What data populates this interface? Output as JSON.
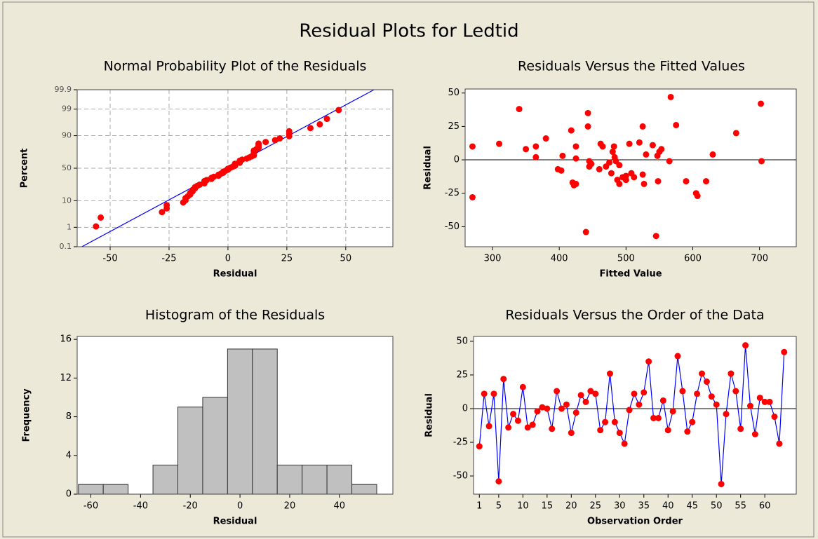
{
  "title": "Residual Plots for Ledtid",
  "chart_data": [
    {
      "type": "probability",
      "title": "Normal Probability Plot of the Residuals",
      "x_label": "Residual",
      "y_label": "Percent",
      "yscale": "probability",
      "grid": true,
      "color": "#FF0000",
      "xlim": [
        -64,
        70
      ],
      "xticks": [
        -50,
        -25,
        0,
        25,
        50
      ],
      "ylim": [
        0.1,
        99.9
      ],
      "yticks": [
        0.1,
        1,
        10,
        50,
        90,
        99,
        99.9
      ],
      "x": [
        -56,
        -54,
        -28,
        -26,
        -26,
        -19,
        -18,
        -18,
        -17,
        -16,
        -16,
        -15,
        -15,
        -14,
        -14,
        -13,
        -12,
        -10,
        -10,
        -10,
        -9,
        -7,
        -7,
        -6,
        -4,
        -4,
        -3,
        -2,
        -2,
        -1,
        0,
        0,
        1,
        2,
        3,
        3,
        3,
        5,
        5,
        5,
        6,
        8,
        9,
        10,
        11,
        11,
        11,
        11,
        11,
        12,
        13,
        13,
        13,
        13,
        16,
        20,
        22,
        26,
        26,
        26,
        35,
        39,
        42,
        47
      ],
      "y": [
        1.1,
        2.6,
        4.2,
        5.7,
        7.3,
        8.9,
        10.4,
        12.0,
        13.5,
        15.1,
        16.6,
        18.2,
        19.7,
        21.3,
        22.8,
        24.4,
        25.9,
        27.5,
        29.0,
        30.6,
        32.1,
        33.7,
        35.2,
        36.8,
        38.4,
        39.9,
        41.5,
        43.0,
        44.6,
        46.1,
        47.7,
        49.2,
        50.8,
        52.3,
        53.9,
        55.4,
        57.0,
        58.5,
        60.1,
        61.6,
        63.2,
        64.8,
        66.3,
        67.9,
        69.4,
        71.0,
        72.5,
        74.1,
        75.6,
        77.2,
        78.7,
        80.3,
        81.8,
        83.4,
        84.9,
        86.5,
        88.0,
        89.6,
        91.1,
        92.7,
        94.3,
        95.8,
        97.4,
        98.9
      ],
      "fit_line": {
        "x": [
          -62,
          62
        ],
        "y": [
          0.1,
          99.9
        ],
        "color": "#0000FF"
      }
    },
    {
      "type": "scatter",
      "title": "Residuals Versus the Fitted Values",
      "x_label": "Fitted Value",
      "y_label": "Residual",
      "color": "#FF0000",
      "reference_line": 0,
      "xlim": [
        259,
        755
      ],
      "xticks": [
        300,
        400,
        500,
        600,
        700
      ],
      "ylim": [
        -65,
        53
      ],
      "yticks": [
        -50,
        -25,
        0,
        25,
        50
      ],
      "x": [
        270,
        270,
        310,
        340,
        350,
        365,
        365,
        380,
        398,
        403,
        405,
        418,
        420,
        422,
        425,
        425,
        425,
        440,
        443,
        443,
        445,
        445,
        448,
        460,
        462,
        465,
        470,
        475,
        478,
        480,
        482,
        483,
        485,
        487,
        490,
        490,
        495,
        500,
        500,
        505,
        508,
        520,
        525,
        525,
        527,
        530,
        540,
        545,
        547,
        548,
        550,
        553,
        565,
        567,
        575,
        590,
        605,
        607,
        620,
        630,
        665,
        702,
        703,
        512
      ],
      "y": [
        10,
        -28,
        12,
        38,
        8,
        10,
        2,
        16,
        -7,
        -8,
        3,
        22,
        -17,
        -19,
        -18,
        10,
        1,
        -54,
        35,
        25,
        -5,
        -1,
        -3,
        -7,
        12,
        10,
        -5,
        -2,
        -10,
        6,
        10,
        2,
        -1,
        -15,
        -18,
        -4,
        -13,
        -12,
        -15,
        12,
        -10,
        13,
        25,
        -11,
        -18,
        4,
        11,
        -57,
        3,
        -16,
        6,
        8,
        -1,
        47,
        26,
        -16,
        -25,
        -27,
        -16,
        4,
        20,
        42,
        -1,
        -13
      ]
    },
    {
      "type": "histogram",
      "title": "Histogram of the Residuals",
      "x_label": "Residual",
      "y_label": "Frequency",
      "color": "#C0C0C0",
      "xlim": [
        -65.5,
        61.5
      ],
      "xticks": [
        -60,
        -40,
        -20,
        0,
        20,
        40
      ],
      "ylim": [
        0,
        16.3
      ],
      "yticks": [
        0,
        4,
        8,
        12,
        16
      ],
      "bins": [
        -65,
        -55,
        -45,
        -35,
        -25,
        -15,
        -5,
        5,
        15,
        25,
        35,
        45,
        55
      ],
      "values": [
        1,
        1,
        0,
        3,
        9,
        10,
        15,
        15,
        3,
        3,
        3,
        1
      ]
    },
    {
      "type": "line",
      "title": "Residuals Versus the Order of the Data",
      "x_label": "Observation Order",
      "y_label": "Residual",
      "color": "#FF0000",
      "line_color": "#0000FF",
      "reference_line": 0,
      "xlim": [
        -0.2,
        66.5
      ],
      "xticks": [
        1,
        5,
        10,
        15,
        20,
        25,
        30,
        35,
        40,
        45,
        50,
        55,
        60
      ],
      "ylim": [
        -63.5,
        53.6
      ],
      "yticks": [
        -50,
        -25,
        0,
        25,
        50
      ],
      "x": [
        1,
        2,
        3,
        4,
        5,
        6,
        7,
        8,
        9,
        10,
        11,
        12,
        13,
        14,
        15,
        16,
        17,
        18,
        19,
        20,
        21,
        22,
        23,
        24,
        25,
        26,
        27,
        28,
        29,
        30,
        31,
        32,
        33,
        34,
        35,
        36,
        37,
        38,
        39,
        40,
        41,
        42,
        43,
        44,
        45,
        46,
        47,
        48,
        49,
        50,
        51,
        52,
        53,
        54,
        55,
        56,
        57,
        58,
        59,
        60,
        61,
        62,
        63,
        64
      ],
      "values": [
        -28,
        11,
        -13,
        11,
        -54,
        22,
        -14,
        -4,
        -9,
        16,
        -14,
        -12,
        -2,
        1,
        0,
        -15,
        13,
        0,
        3,
        -18,
        -3,
        10,
        5,
        13,
        11,
        -16,
        -10,
        26,
        -10,
        -18,
        -26,
        -1,
        11,
        3,
        12,
        35,
        -7,
        -7,
        6,
        -16,
        -2,
        39,
        13,
        -17,
        -10,
        11,
        26,
        20,
        9,
        3,
        -56,
        -4,
        26,
        13,
        -15,
        47,
        2,
        -19,
        8,
        5,
        5,
        -6,
        -26,
        42
      ]
    }
  ]
}
